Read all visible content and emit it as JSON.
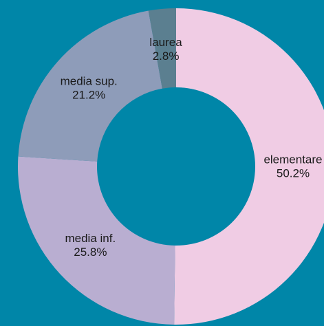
{
  "chart_data": {
    "type": "donut",
    "categories": [
      "elementare",
      "media inf.",
      "media sup.",
      "laurea"
    ],
    "values": [
      50.2,
      25.8,
      21.2,
      2.8
    ],
    "value_labels": [
      "50.2%",
      "25.8%",
      "21.2%",
      "2.8%"
    ],
    "colors": [
      "#f0cce4",
      "#b9aed1",
      "#8e9cb9",
      "#5b7f90"
    ]
  }
}
